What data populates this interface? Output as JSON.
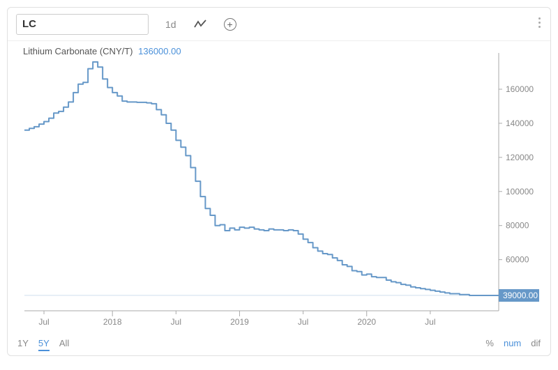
{
  "toolbar": {
    "symbol_value": "LC",
    "interval_label": "1d",
    "chart_style_icon": "line-chart-icon",
    "add_icon": "plus-circle-icon",
    "more_icon": "more-vertical-icon"
  },
  "legend": {
    "series_name": "Lithium Carbonate (CNY/T)",
    "hover_value": "136000.00"
  },
  "chart": {
    "type": "line",
    "line_color": "#6698c8",
    "line_width": 2,
    "background_color": "#ffffff",
    "axis_color": "#888888",
    "tick_label_color": "#888888",
    "tick_fontsize": 12,
    "y_axis": {
      "side": "right",
      "ticks": [
        40000,
        60000,
        80000,
        100000,
        120000,
        140000,
        160000
      ],
      "min_visible": 30000,
      "max_visible": 178000
    },
    "last_value": 39000,
    "last_value_label": "39000.00",
    "last_value_tag_bg": "#6698c8",
    "last_value_line_color": "#6698c8",
    "x_axis": {
      "tick_labels": [
        "Jul",
        "2018",
        "Jul",
        "2019",
        "Jul",
        "2020",
        "Jul"
      ],
      "tick_index_positions": [
        4,
        18,
        31,
        44,
        57,
        70,
        83
      ],
      "domain_index_max": 97
    },
    "series": [
      136000,
      137000,
      138000,
      139500,
      141000,
      143000,
      146000,
      147000,
      149500,
      152500,
      158000,
      163000,
      164000,
      172000,
      176000,
      173000,
      166000,
      161000,
      158000,
      156000,
      153000,
      152500,
      152500,
      152300,
      152300,
      152000,
      151500,
      148000,
      145000,
      140000,
      136000,
      130000,
      126000,
      121000,
      114000,
      106000,
      97000,
      90000,
      86000,
      80000,
      80500,
      77000,
      78500,
      77500,
      79000,
      78500,
      79000,
      78000,
      77500,
      77000,
      78000,
      77500,
      77500,
      77000,
      77500,
      77000,
      75000,
      72000,
      70000,
      67000,
      65000,
      63500,
      63000,
      61000,
      59500,
      57000,
      56000,
      53500,
      53000,
      51000,
      51500,
      50000,
      49500,
      49500,
      48000,
      47000,
      46500,
      45500,
      45000,
      44000,
      43500,
      43000,
      42500,
      42000,
      41500,
      41000,
      40500,
      40000,
      40000,
      39500,
      39500,
      39000,
      39000,
      39000,
      39000,
      39000,
      39000,
      39000
    ]
  },
  "ranges": {
    "options": [
      "1Y",
      "5Y",
      "All"
    ],
    "active_index": 1
  },
  "modes": {
    "options": [
      "%",
      "num",
      "dif"
    ],
    "active_index": 1
  }
}
